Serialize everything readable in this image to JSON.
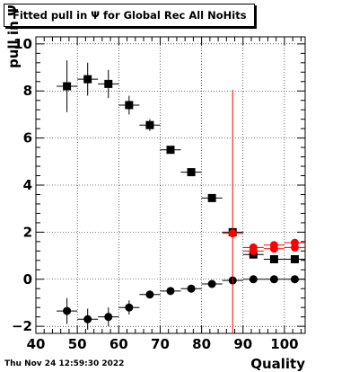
{
  "title": "Fitted pull in  Ψ  for Global Rec All NoHits",
  "footer_timestamp": "Thu Nov 24 12:59:30 2022",
  "chart_data": {
    "type": "scatter",
    "title": "Fitted pull in  Ψ  for Global Rec All NoHits",
    "xlabel": "Quality",
    "ylabel": "pull in  Ψ",
    "xlim": [
      40,
      105
    ],
    "ylim": [
      -2.3,
      10.3
    ],
    "xticks": [
      40,
      50,
      60,
      70,
      80,
      90,
      100
    ],
    "yticks": [
      -2,
      0,
      2,
      4,
      6,
      8,
      10
    ],
    "grid": true,
    "series": [
      {
        "marker": "square",
        "color": "#000000",
        "points": [
          {
            "x": 47.5,
            "y": 8.2,
            "xerr": 2.5,
            "yerr": 1.1
          },
          {
            "x": 52.5,
            "y": 8.5,
            "xerr": 2.5,
            "yerr": 0.7
          },
          {
            "x": 57.5,
            "y": 8.3,
            "xerr": 2.5,
            "yerr": 0.6
          },
          {
            "x": 62.5,
            "y": 7.4,
            "xerr": 2.5,
            "yerr": 0.4
          },
          {
            "x": 67.5,
            "y": 6.55,
            "xerr": 2.5,
            "yerr": 0.25
          },
          {
            "x": 72.5,
            "y": 5.5,
            "xerr": 2.5,
            "yerr": 0.1
          },
          {
            "x": 77.5,
            "y": 4.55,
            "xerr": 2.5,
            "yerr": 0.08
          },
          {
            "x": 82.5,
            "y": 3.45,
            "xerr": 2.5,
            "yerr": 0.08
          },
          {
            "x": 87.5,
            "y": 2.0,
            "xerr": 2.5,
            "yerr": 0.05
          },
          {
            "x": 92.5,
            "y": 1.05,
            "xerr": 2.5,
            "yerr": 0.05
          },
          {
            "x": 97.5,
            "y": 0.85,
            "xerr": 2.5,
            "yerr": 0.04
          },
          {
            "x": 102.5,
            "y": 0.85,
            "xerr": 2.5,
            "yerr": 0.04
          }
        ]
      },
      {
        "marker": "circle",
        "color": "#000000",
        "points": [
          {
            "x": 47.5,
            "y": -1.35,
            "xerr": 2.5,
            "yerr": 0.55
          },
          {
            "x": 52.5,
            "y": -1.7,
            "xerr": 2.5,
            "yerr": 0.45
          },
          {
            "x": 57.5,
            "y": -1.6,
            "xerr": 2.5,
            "yerr": 0.4
          },
          {
            "x": 62.5,
            "y": -1.2,
            "xerr": 2.5,
            "yerr": 0.3
          },
          {
            "x": 67.5,
            "y": -0.65,
            "xerr": 2.5,
            "yerr": 0.15
          },
          {
            "x": 72.5,
            "y": -0.5,
            "xerr": 2.5,
            "yerr": 0.08
          },
          {
            "x": 77.5,
            "y": -0.4,
            "xerr": 2.5,
            "yerr": 0.05
          },
          {
            "x": 82.5,
            "y": -0.2,
            "xerr": 2.5,
            "yerr": 0.05
          },
          {
            "x": 87.5,
            "y": -0.05,
            "xerr": 2.5,
            "yerr": 0.05
          },
          {
            "x": 92.5,
            "y": 0.0,
            "xerr": 2.5,
            "yerr": 0.03
          },
          {
            "x": 97.5,
            "y": 0.0,
            "xerr": 2.5,
            "yerr": 0.03
          },
          {
            "x": 102.5,
            "y": 0.0,
            "xerr": 2.5,
            "yerr": 0.03
          }
        ]
      },
      {
        "marker": "circle",
        "color": "#ff0000",
        "points": [
          {
            "x": 87.5,
            "y": 1.95,
            "xerr": 2.5,
            "yerr": 6.1
          },
          {
            "x": 92.5,
            "y": 1.35,
            "xerr": 2.5,
            "yerr": 0.1
          },
          {
            "x": 97.5,
            "y": 1.45,
            "xerr": 2.5,
            "yerr": 0.08
          },
          {
            "x": 102.5,
            "y": 1.55,
            "xerr": 2.5,
            "yerr": 0.06
          }
        ]
      },
      {
        "marker": "circle",
        "color": "#ff0000",
        "points": [
          {
            "x": 92.5,
            "y": 1.2,
            "xerr": 2.5,
            "yerr": 0.1
          },
          {
            "x": 97.5,
            "y": 1.3,
            "xerr": 2.5,
            "yerr": 0.08
          },
          {
            "x": 102.5,
            "y": 1.35,
            "xerr": 2.5,
            "yerr": 0.06
          }
        ]
      }
    ]
  }
}
